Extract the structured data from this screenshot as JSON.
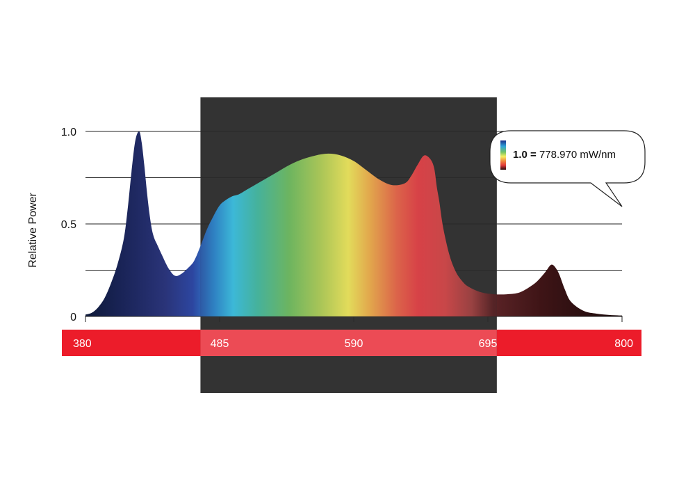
{
  "chart_data": {
    "type": "area",
    "title": "",
    "xlabel": "",
    "ylabel": "Relative Power",
    "xlim": [
      380,
      800
    ],
    "ylim": [
      0,
      1.0
    ],
    "y_ticks": [
      "0",
      "0.5",
      "1.0"
    ],
    "y_gridlines": [
      0.25,
      0.5,
      0.75,
      1.0
    ],
    "x_ticks": [
      "380",
      "485",
      "590",
      "695",
      "800"
    ],
    "grid": true,
    "legend": "none",
    "fill": "wavelength spectrum gradient",
    "highlight_band": [
      470,
      702
    ],
    "callout": {
      "value": "1.0",
      "equals": "=",
      "text": "778.970 mW/nm"
    },
    "series": [
      {
        "x": [
          380,
          385,
          390,
          395,
          400,
          405,
          410,
          413,
          416,
          419,
          422,
          424,
          426,
          428,
          430,
          432,
          434,
          436,
          440,
          445,
          450,
          455,
          460,
          465,
          470,
          475,
          480,
          485,
          490,
          495,
          500,
          505,
          510,
          520,
          530,
          540,
          550,
          560,
          570,
          580,
          590,
          600,
          610,
          620,
          630,
          635,
          640,
          645,
          650,
          653,
          655,
          657,
          660,
          665,
          670,
          675,
          680,
          690,
          700,
          710,
          720,
          730,
          735,
          740,
          745,
          750,
          755,
          760,
          770,
          780,
          790,
          800
        ],
        "y": [
          0.01,
          0.02,
          0.05,
          0.1,
          0.18,
          0.28,
          0.42,
          0.58,
          0.78,
          0.95,
          1.0,
          0.94,
          0.82,
          0.68,
          0.56,
          0.47,
          0.42,
          0.39,
          0.33,
          0.26,
          0.22,
          0.23,
          0.26,
          0.3,
          0.38,
          0.47,
          0.54,
          0.6,
          0.63,
          0.65,
          0.66,
          0.68,
          0.7,
          0.74,
          0.78,
          0.82,
          0.85,
          0.87,
          0.88,
          0.87,
          0.84,
          0.79,
          0.74,
          0.71,
          0.72,
          0.76,
          0.82,
          0.87,
          0.85,
          0.8,
          0.7,
          0.62,
          0.48,
          0.33,
          0.24,
          0.19,
          0.16,
          0.13,
          0.12,
          0.12,
          0.13,
          0.17,
          0.2,
          0.24,
          0.28,
          0.24,
          0.15,
          0.08,
          0.03,
          0.015,
          0.008,
          0.005
        ]
      }
    ]
  }
}
